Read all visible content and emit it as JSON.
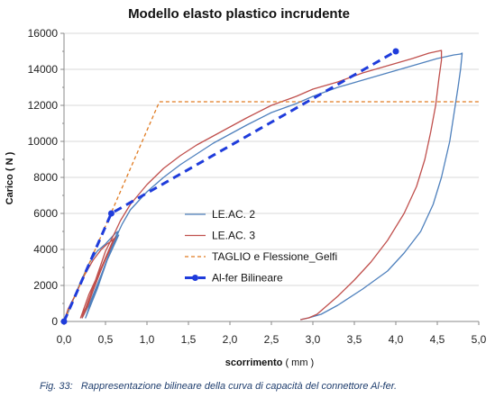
{
  "chart_data": {
    "type": "line",
    "title": "Modello elasto plastico incrudente",
    "xlabel_bold": "scorrimento",
    "xlabel_unit": "( mm )",
    "ylabel": "Carico ( N )",
    "xlim": [
      0,
      5
    ],
    "ylim": [
      0,
      16000
    ],
    "x_ticks": [
      "0,0",
      "0,5",
      "1,0",
      "1,5",
      "2,0",
      "2,5",
      "3,0",
      "3,5",
      "4,0",
      "4,5",
      "5,0"
    ],
    "y_ticks": [
      "0",
      "2000",
      "4000",
      "6000",
      "8000",
      "10000",
      "12000",
      "14000",
      "16000"
    ],
    "legend_position": "center",
    "series": [
      {
        "name": "LE.AC. 2",
        "color": "#4f81bd",
        "style": "solid",
        "x": [
          0,
          0.05,
          0.12,
          0.2,
          0.3,
          0.4,
          0.5,
          0.57,
          0.62,
          0.65,
          0.5,
          0.35,
          0.22,
          0.3,
          0.45,
          0.58,
          0.66,
          0.5,
          0.32,
          0.26,
          0.4,
          0.55,
          0.66,
          0.7,
          0.8,
          1.0,
          1.2,
          1.4,
          1.6,
          1.8,
          2.0,
          2.2,
          2.5,
          2.8,
          3.0,
          3.3,
          3.6,
          3.9,
          4.2,
          4.5,
          4.7,
          4.78,
          4.8,
          4.78,
          4.75,
          4.7,
          4.65,
          4.55,
          4.45,
          4.3,
          4.1,
          3.9,
          3.6,
          3.3,
          3.1,
          2.95,
          2.85
        ],
        "y": [
          0,
          500,
          1300,
          2200,
          3200,
          3900,
          4300,
          4650,
          4900,
          5000,
          3500,
          1800,
          200,
          900,
          2600,
          4200,
          4800,
          3200,
          1000,
          200,
          1800,
          3800,
          5000,
          5400,
          6200,
          7200,
          8000,
          8700,
          9300,
          9900,
          10400,
          10900,
          11600,
          12100,
          12500,
          13000,
          13400,
          13800,
          14200,
          14600,
          14800,
          14850,
          14900,
          14000,
          13000,
          11500,
          10000,
          8000,
          6500,
          5000,
          3800,
          2800,
          1800,
          900,
          400,
          200,
          100
        ]
      },
      {
        "name": "LE.AC. 3",
        "color": "#c0504d",
        "style": "solid",
        "x": [
          0,
          0.05,
          0.15,
          0.25,
          0.35,
          0.45,
          0.52,
          0.58,
          0.6,
          0.45,
          0.3,
          0.2,
          0.3,
          0.45,
          0.58,
          0.62,
          0.45,
          0.28,
          0.22,
          0.35,
          0.5,
          0.62,
          0.68,
          0.8,
          1.0,
          1.2,
          1.4,
          1.6,
          1.8,
          2.0,
          2.2,
          2.5,
          2.8,
          3.0,
          3.3,
          3.6,
          3.9,
          4.2,
          4.4,
          4.5,
          4.55,
          4.55,
          4.52,
          4.48,
          4.42,
          4.35,
          4.25,
          4.1,
          3.9,
          3.7,
          3.5,
          3.3,
          3.15,
          3.05,
          2.95,
          2.85
        ],
        "y": [
          0,
          700,
          1600,
          2600,
          3400,
          4000,
          4300,
          4500,
          4600,
          3000,
          1500,
          200,
          1100,
          2900,
          4300,
          4700,
          3000,
          800,
          200,
          1900,
          3900,
          5000,
          5600,
          6500,
          7600,
          8500,
          9200,
          9800,
          10300,
          10800,
          11300,
          12000,
          12500,
          12900,
          13300,
          13800,
          14200,
          14600,
          14900,
          15000,
          15050,
          14500,
          13500,
          12000,
          10500,
          9000,
          7500,
          6000,
          4500,
          3300,
          2300,
          1400,
          800,
          400,
          200,
          100
        ]
      },
      {
        "name": "TAGLIO e Flessione_Gelfi",
        "color": "#e07b22",
        "style": "dashed-thin",
        "x": [
          0,
          1.15,
          5.0
        ],
        "y": [
          0,
          12200,
          12200
        ]
      },
      {
        "name": "Al-fer Bilineare",
        "color": "#1f3cdb",
        "style": "dashed-thick-markers",
        "x": [
          0,
          0.57,
          4.0
        ],
        "y": [
          0,
          6000,
          15000
        ]
      }
    ]
  },
  "caption": {
    "prefix": "Fig.  33:",
    "text": "Rappresentazione bilineare della curva di capacità del connettore Al-fer."
  }
}
